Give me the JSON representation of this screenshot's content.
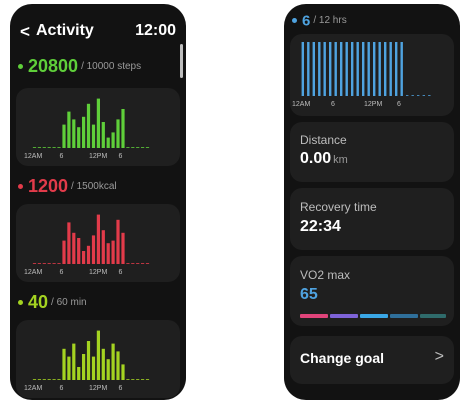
{
  "left_screen": {
    "header": {
      "back_icon": "chevron-left-icon",
      "back_glyph": "<",
      "title": "Activity",
      "time": "12:00"
    },
    "steps": {
      "value": "20800",
      "goal": "/ 10000 steps",
      "color": "#5fcf3a"
    },
    "calories": {
      "value": "1200",
      "goal": "/ 1500kcal",
      "color": "#e23b4a"
    },
    "minutes": {
      "value": "40",
      "goal": "/ 60 min",
      "color": "#a4d321"
    }
  },
  "right_screen": {
    "hours": {
      "value": "6",
      "goal": "/ 12 hrs",
      "color": "#4fa3e0"
    },
    "distance": {
      "label": "Distance",
      "value": "0.00",
      "unit": "km"
    },
    "recovery": {
      "label": "Recovery time",
      "value": "22:34"
    },
    "vo2": {
      "label": "VO2 max",
      "value": "65",
      "scale_colors": [
        "#e0447a",
        "#7e63d8",
        "#3aa7e6",
        "#2f6f9a",
        "#2f6b6b"
      ]
    },
    "change_goal": {
      "label": "Change goal",
      "chevron_glyph": ">"
    }
  },
  "chart_data": [
    {
      "type": "bar",
      "name": "steps-hourly",
      "color": "#5fcf3a",
      "x_ticks": [
        "12AM",
        "6",
        "12PM",
        "6"
      ],
      "values": [
        0,
        0,
        0,
        0,
        0,
        0,
        0.45,
        0.7,
        0.55,
        0.4,
        0.6,
        0.85,
        0.45,
        0.95,
        0.5,
        0.2,
        0.3,
        0.55,
        0.75,
        0,
        0,
        0,
        0,
        0
      ],
      "ylim": [
        0,
        1
      ]
    },
    {
      "type": "bar",
      "name": "calories-hourly",
      "color": "#e23b4a",
      "x_ticks": [
        "12AM",
        "6",
        "12PM",
        "6"
      ],
      "values": [
        0,
        0,
        0,
        0,
        0,
        0,
        0.45,
        0.8,
        0.6,
        0.5,
        0.25,
        0.35,
        0.55,
        0.95,
        0.65,
        0.4,
        0.45,
        0.85,
        0.6,
        0,
        0,
        0,
        0,
        0
      ],
      "ylim": [
        0,
        1
      ]
    },
    {
      "type": "bar",
      "name": "minutes-hourly",
      "color": "#a4d321",
      "x_ticks": [
        "12AM",
        "6",
        "12PM",
        "6"
      ],
      "values": [
        0,
        0,
        0,
        0,
        0,
        0,
        0.6,
        0.45,
        0.7,
        0.25,
        0.5,
        0.75,
        0.45,
        0.95,
        0.6,
        0.4,
        0.7,
        0.55,
        0.3,
        0,
        0,
        0,
        0,
        0
      ],
      "ylim": [
        0,
        1
      ]
    },
    {
      "type": "bar",
      "name": "hours-hourly",
      "color": "#4fa3e0",
      "x_ticks": [
        "12AM",
        "6",
        "12PM",
        "6"
      ],
      "values": [
        1,
        1,
        1,
        1,
        1,
        1,
        1,
        1,
        1,
        1,
        1,
        1,
        1,
        1,
        1,
        1,
        1,
        1,
        1,
        0,
        0,
        0,
        0,
        0
      ],
      "ylim": [
        0,
        1
      ]
    }
  ]
}
